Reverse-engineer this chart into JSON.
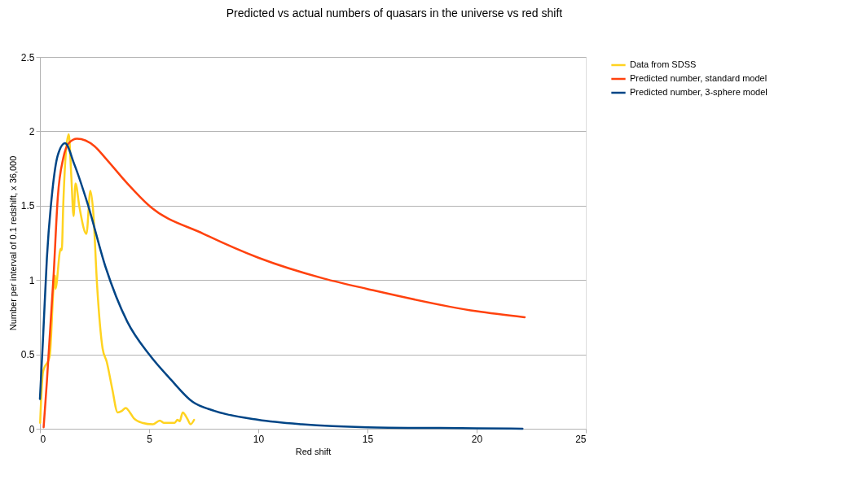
{
  "chart_data": {
    "type": "line",
    "title": "Predicted vs actual numbers of quasars in the universe vs red shift",
    "xlabel": "Red shift",
    "ylabel": "Number per interval of 0.1 redshift,      x 36,000",
    "xlim": [
      0,
      25
    ],
    "xticks": [
      0,
      5,
      10,
      15,
      20,
      25
    ],
    "ylim": [
      0,
      2.5
    ],
    "yticks": [
      0,
      0.5,
      1,
      1.5,
      2,
      2.5
    ],
    "grid": "y",
    "legend": "right",
    "marker": "none",
    "line_style": "solid",
    "series": [
      {
        "name": "Data from SDSS",
        "color": "#ffd320",
        "x": [
          0.01,
          0.14,
          0.45,
          0.63,
          0.7,
          0.71,
          0.95,
          1.0,
          1.07,
          1.19,
          1.32,
          1.44,
          1.54,
          1.63,
          1.81,
          2.13,
          2.31,
          2.44,
          2.62,
          2.87,
          3.06,
          3.31,
          3.56,
          3.75,
          3.93,
          4.12,
          4.3,
          4.68,
          5.17,
          5.49,
          5.67,
          6.17,
          6.3,
          6.4,
          6.54,
          6.74,
          6.9,
          7.06
        ],
        "values": [
          0.04,
          0.38,
          0.49,
          0.96,
          1.03,
          0.94,
          1.21,
          1.2,
          1.51,
          1.86,
          1.98,
          1.69,
          1.43,
          1.65,
          1.49,
          1.31,
          1.6,
          1.46,
          0.96,
          0.54,
          0.45,
          0.27,
          0.11,
          0.12,
          0.14,
          0.11,
          0.07,
          0.04,
          0.03,
          0.055,
          0.04,
          0.04,
          0.06,
          0.05,
          0.11,
          0.07,
          0.03,
          0.06
        ]
      },
      {
        "name": "Predicted number, standard model",
        "color": "#ff420e",
        "x": [
          0.17,
          0.32,
          0.63,
          0.82,
          1.07,
          1.32,
          1.7,
          2.5,
          3,
          4,
          5,
          7.5,
          10,
          13,
          15,
          20,
          22.2
        ],
        "values": [
          0.01,
          0.32,
          1.04,
          1.56,
          1.82,
          1.92,
          1.95,
          1.9,
          1.82,
          1.65,
          1.5,
          1.31,
          1.15,
          1.01,
          0.94,
          0.79,
          0.75
        ]
      },
      {
        "name": "Predicted number, 3-sphere model",
        "color": "#004586",
        "x": [
          0,
          0.14,
          0.32,
          0.57,
          0.82,
          1.15,
          1.57,
          2.19,
          3,
          4,
          5,
          6,
          7,
          8,
          10,
          12,
          15,
          20,
          22.1
        ],
        "values": [
          0.2,
          0.6,
          1.15,
          1.6,
          1.84,
          1.92,
          1.78,
          1.51,
          1.09,
          0.72,
          0.5,
          0.33,
          0.18,
          0.12,
          0.06,
          0.03,
          0.01,
          0.003,
          0
        ]
      }
    ]
  }
}
